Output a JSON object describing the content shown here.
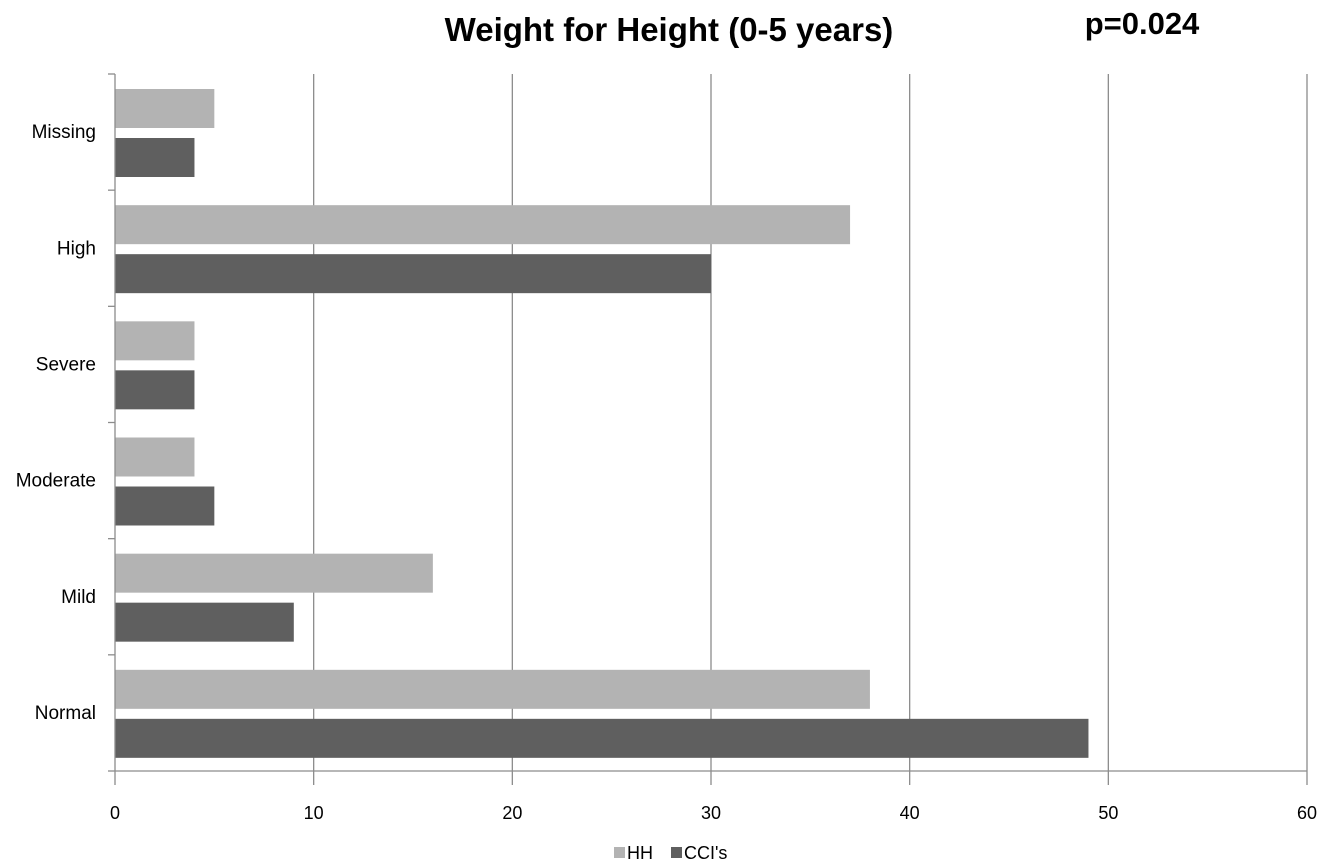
{
  "chart_data": {
    "type": "bar",
    "orientation": "horizontal",
    "title": "Weight for Height (0-5 years)",
    "annotation": "p=0.024",
    "categories": [
      "Missing",
      "High",
      "Severe",
      "Moderate",
      "Mild",
      "Normal"
    ],
    "series": [
      {
        "name": "HH",
        "color": "#b3b3b3",
        "values": [
          5,
          37,
          4,
          4,
          16,
          38
        ]
      },
      {
        "name": "CCI's",
        "color": "#5f5f5f",
        "values": [
          4,
          30,
          4,
          5,
          9,
          49
        ]
      }
    ],
    "xlim": [
      0,
      60
    ],
    "xticks": [
      0,
      10,
      20,
      30,
      40,
      50,
      60
    ],
    "xlabel": "",
    "ylabel": "",
    "grid": "vertical",
    "legend_position": "bottom"
  }
}
